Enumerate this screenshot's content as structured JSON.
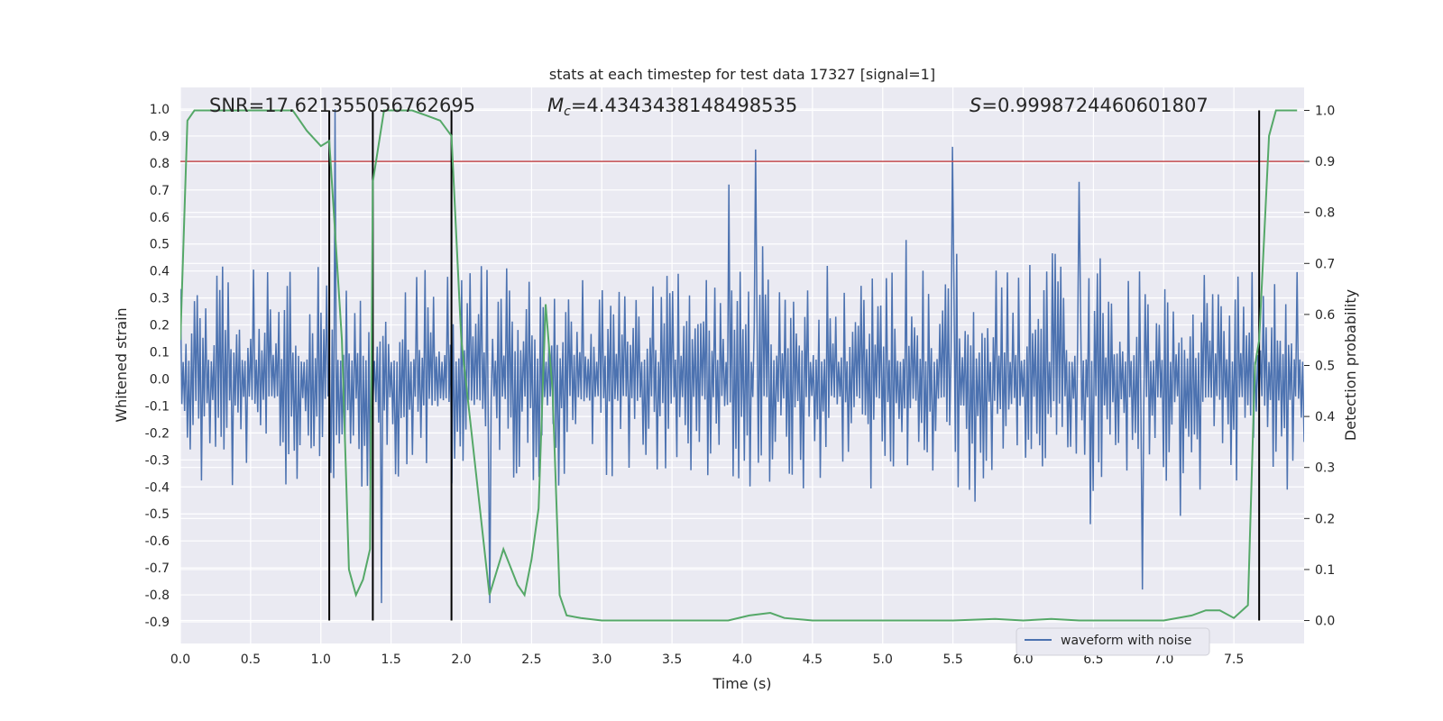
{
  "chart_data": {
    "type": "line",
    "title": "stats at each timestep for test data 17327 [signal=1]",
    "xlabel": "Time (s)",
    "ylabel": "Whitened strain",
    "y2label": "Detection probability",
    "xlim": [
      0.0,
      8.0
    ],
    "ylim": [
      -0.98,
      1.08
    ],
    "y2lim": [
      -0.045,
      1.045
    ],
    "xticks": [
      "0.0",
      "0.5",
      "1.0",
      "1.5",
      "2.0",
      "2.5",
      "3.0",
      "3.5",
      "4.0",
      "4.5",
      "5.0",
      "5.5",
      "6.0",
      "6.5",
      "7.0",
      "7.5"
    ],
    "yticks": [
      "1.0",
      "0.9",
      "0.8",
      "0.7",
      "0.6",
      "0.5",
      "0.4",
      "0.3",
      "0.2",
      "0.1",
      "0.0",
      "-0.1",
      "-0.2",
      "-0.3",
      "-0.4",
      "-0.5",
      "-0.6",
      "-0.7",
      "-0.8",
      "-0.9"
    ],
    "y2ticks": [
      "1.0",
      "0.9",
      "0.8",
      "0.7",
      "0.6",
      "0.5",
      "0.4",
      "0.3",
      "0.2",
      "0.1",
      "0.0"
    ],
    "annotations": {
      "snr": "SNR=17.621355056762695",
      "mc_symbol": "M",
      "mc_sub": "c",
      "mc_value": "=4.4343438148498535",
      "s_symbol": "S",
      "s_value": "=0.9998724460601807"
    },
    "legend": {
      "label": "waveform with noise",
      "location": "lower-right"
    },
    "threshold": {
      "value": 0.9,
      "axis": "y2",
      "color": "#c44e52"
    },
    "vlines_x": [
      1.06,
      1.37,
      1.93,
      7.68
    ],
    "vline_range_y2": [
      0.0,
      1.0
    ],
    "waveform": {
      "name": "waveform with noise",
      "color": "#4c72b0",
      "samples": 800,
      "envelope_pos": 0.42,
      "envelope_neg": -0.42,
      "notable_spikes": [
        {
          "x": 1.1,
          "y": 1.0
        },
        {
          "x": 4.1,
          "y": 0.85
        },
        {
          "x": 5.5,
          "y": 0.86
        },
        {
          "x": 3.9,
          "y": 0.72
        },
        {
          "x": 6.4,
          "y": 0.73
        },
        {
          "x": 6.85,
          "y": -0.78
        },
        {
          "x": 1.43,
          "y": -0.83
        },
        {
          "x": 2.2,
          "y": -0.83
        }
      ]
    },
    "probability": {
      "name": "detection probability",
      "color": "#55a868",
      "x": [
        0.0,
        0.05,
        0.1,
        0.2,
        0.3,
        0.4,
        0.5,
        0.6,
        0.7,
        0.8,
        0.9,
        1.0,
        1.06,
        1.15,
        1.2,
        1.25,
        1.3,
        1.35,
        1.37,
        1.45,
        1.55,
        1.65,
        1.75,
        1.85,
        1.93,
        2.0,
        2.1,
        2.2,
        2.3,
        2.4,
        2.45,
        2.5,
        2.55,
        2.6,
        2.65,
        2.7,
        2.75,
        2.85,
        3.0,
        3.5,
        3.9,
        4.05,
        4.2,
        4.3,
        4.5,
        4.75,
        5.0,
        5.5,
        5.8,
        6.0,
        6.2,
        6.4,
        6.7,
        7.0,
        7.2,
        7.3,
        7.4,
        7.5,
        7.6,
        7.65,
        7.68,
        7.75,
        7.8,
        7.85,
        7.95
      ],
      "values": [
        0.55,
        0.98,
        1.0,
        1.0,
        1.0,
        1.0,
        1.0,
        1.0,
        1.0,
        1.0,
        0.96,
        0.93,
        0.94,
        0.55,
        0.1,
        0.05,
        0.08,
        0.14,
        0.86,
        1.0,
        1.0,
        1.0,
        0.99,
        0.98,
        0.95,
        0.55,
        0.3,
        0.05,
        0.14,
        0.07,
        0.05,
        0.12,
        0.22,
        0.62,
        0.45,
        0.05,
        0.01,
        0.005,
        0.0,
        0.0,
        0.0,
        0.01,
        0.015,
        0.005,
        0.0,
        0.0,
        0.0,
        0.0,
        0.003,
        0.0,
        0.003,
        0.0,
        0.0,
        0.0,
        0.01,
        0.02,
        0.02,
        0.005,
        0.03,
        0.5,
        0.55,
        0.95,
        1.0,
        1.0,
        1.0
      ]
    }
  }
}
